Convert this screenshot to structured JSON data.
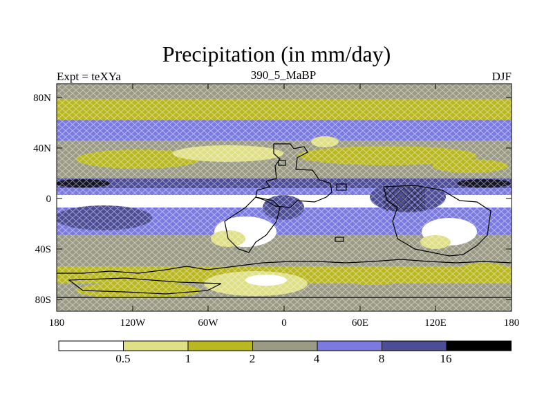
{
  "title": "Precipitation (in mm/day)",
  "subtitle_left": "Expt = teXYa",
  "subtitle_center": "390_5_MaBP",
  "subtitle_right": "DJF",
  "y_ticks": [
    "80N",
    "40N",
    "0",
    "40S",
    "80S"
  ],
  "x_ticks": [
    "180",
    "120W",
    "60W",
    "0",
    "60E",
    "120E",
    "180"
  ],
  "colorbar": {
    "labels": [
      "0.5",
      "1",
      "2",
      "4",
      "8",
      "16"
    ],
    "colors": [
      "#ffffff",
      "#dfdf85",
      "#b9b821",
      "#9a9a85",
      "#7a7ae0",
      "#4d4d97",
      "#000000"
    ]
  }
}
